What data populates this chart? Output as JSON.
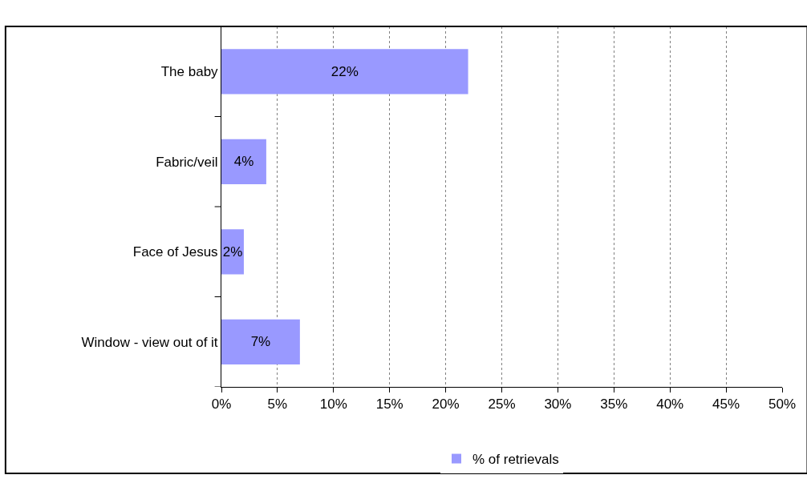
{
  "chart_data": {
    "type": "bar",
    "orientation": "horizontal",
    "categories": [
      "The baby",
      "Fabric/veil",
      "Face of Jesus",
      "Window - view out of it"
    ],
    "series": [
      {
        "name": "% of retrievals",
        "color": "#9999ff",
        "values": [
          22,
          4,
          2,
          7
        ],
        "value_labels": [
          "22%",
          "4%",
          "2%",
          "7%"
        ]
      }
    ],
    "xlim": [
      0,
      50
    ],
    "xticks": [
      {
        "value": 0,
        "label": "0%"
      },
      {
        "value": 5,
        "label": "5%"
      },
      {
        "value": 10,
        "label": "10%"
      },
      {
        "value": 15,
        "label": "15%"
      },
      {
        "value": 20,
        "label": "20%"
      },
      {
        "value": 25,
        "label": "25%"
      },
      {
        "value": 30,
        "label": "30%"
      },
      {
        "value": 35,
        "label": "35%"
      },
      {
        "value": 40,
        "label": "40%"
      },
      {
        "value": 45,
        "label": "45%"
      },
      {
        "value": 50,
        "label": "50%"
      }
    ],
    "grid": "x",
    "legend": "bottom"
  }
}
